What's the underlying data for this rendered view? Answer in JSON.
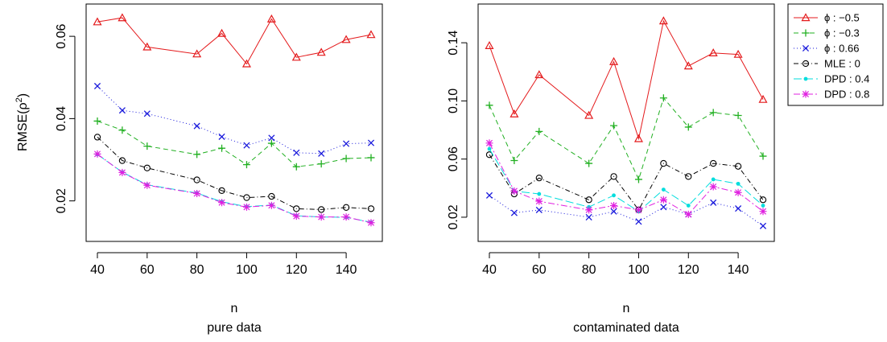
{
  "chart_data": [
    {
      "type": "line",
      "xlabel": "n",
      "subtitle": "pure data",
      "ylabel_base": "RMSE(ρ",
      "ylabel_sup": "2",
      "ylabel_close": ")",
      "x": [
        40,
        50,
        60,
        80,
        90,
        100,
        110,
        120,
        130,
        140,
        150
      ],
      "xlim": [
        40,
        150
      ],
      "ylim": [
        0.0125,
        0.0655
      ],
      "xticks": [
        40,
        60,
        80,
        100,
        120,
        140
      ],
      "yticks": [
        0.02,
        0.04,
        0.06
      ],
      "series": [
        {
          "name": "ϕ : −0.5",
          "color": "#e41a1c",
          "marker": "triangle",
          "dash": "",
          "values": [
            0.0635,
            0.0645,
            0.0574,
            0.0557,
            0.0607,
            0.0533,
            0.0642,
            0.0549,
            0.0561,
            0.0592,
            0.0604
          ]
        },
        {
          "name": "ϕ : −0.3",
          "color": "#22b022",
          "marker": "plus",
          "dash": "6,4",
          "values": [
            0.0394,
            0.0372,
            0.0333,
            0.0313,
            0.0328,
            0.0288,
            0.034,
            0.0283,
            0.029,
            0.0303,
            0.0305
          ]
        },
        {
          "name": "ϕ : 0.66",
          "color": "#1a1adc",
          "marker": "cross",
          "dash": "1,3",
          "values": [
            0.0479,
            0.042,
            0.0412,
            0.0382,
            0.0356,
            0.0335,
            0.0353,
            0.0317,
            0.0315,
            0.0339,
            0.0341
          ]
        },
        {
          "name": "MLE : 0",
          "color": "#000000",
          "marker": "circle",
          "dash": "6,3,1,3",
          "values": [
            0.0355,
            0.0298,
            0.028,
            0.0251,
            0.0225,
            0.0208,
            0.0211,
            0.0181,
            0.0179,
            0.0184,
            0.0181
          ]
        },
        {
          "name": "DPD : 0.4",
          "color": "#00dddd",
          "marker": "dot",
          "dash": "10,4",
          "values": [
            0.0313,
            0.027,
            0.0239,
            0.0219,
            0.0198,
            0.0186,
            0.019,
            0.0164,
            0.0161,
            0.016,
            0.0148
          ]
        },
        {
          "name": "DPD : 0.8",
          "color": "#e020e0",
          "marker": "star",
          "dash": "8,3,2,3",
          "values": [
            0.0314,
            0.0269,
            0.0238,
            0.0218,
            0.0196,
            0.0185,
            0.0189,
            0.0163,
            0.0161,
            0.0161,
            0.0147
          ]
        }
      ]
    },
    {
      "type": "line",
      "xlabel": "n",
      "subtitle": "contaminated data",
      "x": [
        40,
        50,
        60,
        80,
        90,
        100,
        110,
        120,
        130,
        140,
        150
      ],
      "xlim": [
        40,
        150
      ],
      "ylim": [
        0.01,
        0.16
      ],
      "xticks": [
        40,
        60,
        80,
        100,
        120,
        140
      ],
      "yticks": [
        0.02,
        0.06,
        0.1,
        0.14
      ],
      "series": [
        {
          "name": "ϕ : −0.5",
          "color": "#e41a1c",
          "marker": "triangle",
          "dash": "",
          "values": [
            0.138,
            0.091,
            0.118,
            0.09,
            0.127,
            0.074,
            0.155,
            0.124,
            0.133,
            0.132,
            0.101
          ]
        },
        {
          "name": "ϕ : −0.3",
          "color": "#22b022",
          "marker": "plus",
          "dash": "6,4",
          "values": [
            0.097,
            0.059,
            0.079,
            0.057,
            0.083,
            0.046,
            0.102,
            0.082,
            0.092,
            0.09,
            0.062
          ]
        },
        {
          "name": "ϕ : 0.66",
          "color": "#1a1adc",
          "marker": "cross",
          "dash": "1,3",
          "values": [
            0.035,
            0.023,
            0.025,
            0.02,
            0.024,
            0.017,
            0.027,
            0.022,
            0.03,
            0.026,
            0.014
          ]
        },
        {
          "name": "MLE : 0",
          "color": "#000000",
          "marker": "circle",
          "dash": "6,3,1,3",
          "values": [
            0.063,
            0.036,
            0.047,
            0.032,
            0.048,
            0.025,
            0.057,
            0.048,
            0.057,
            0.055,
            0.032
          ]
        },
        {
          "name": "DPD : 0.4",
          "color": "#00dddd",
          "marker": "dot",
          "dash": "10,4",
          "values": [
            0.067,
            0.038,
            0.036,
            0.027,
            0.035,
            0.024,
            0.039,
            0.028,
            0.046,
            0.043,
            0.028
          ]
        },
        {
          "name": "DPD : 0.8",
          "color": "#e020e0",
          "marker": "star",
          "dash": "8,3,2,3",
          "values": [
            0.071,
            0.038,
            0.031,
            0.025,
            0.028,
            0.025,
            0.032,
            0.022,
            0.041,
            0.037,
            0.024
          ]
        }
      ]
    }
  ],
  "legend": {
    "placement": "top-right",
    "items": [
      {
        "label": "ϕ : −0.5",
        "color": "#e41a1c",
        "marker": "triangle",
        "dash": ""
      },
      {
        "label": "ϕ : −0.3",
        "color": "#22b022",
        "marker": "plus",
        "dash": "6,4"
      },
      {
        "label": "ϕ : 0.66",
        "color": "#1a1adc",
        "marker": "cross",
        "dash": "1,3"
      },
      {
        "label": "MLE : 0",
        "color": "#000000",
        "marker": "circle",
        "dash": "6,3,1,3"
      },
      {
        "label": "DPD : 0.4",
        "color": "#00dddd",
        "marker": "dot",
        "dash": "10,4"
      },
      {
        "label": "DPD : 0.8",
        "color": "#e020e0",
        "marker": "star",
        "dash": "8,3,2,3"
      }
    ]
  }
}
